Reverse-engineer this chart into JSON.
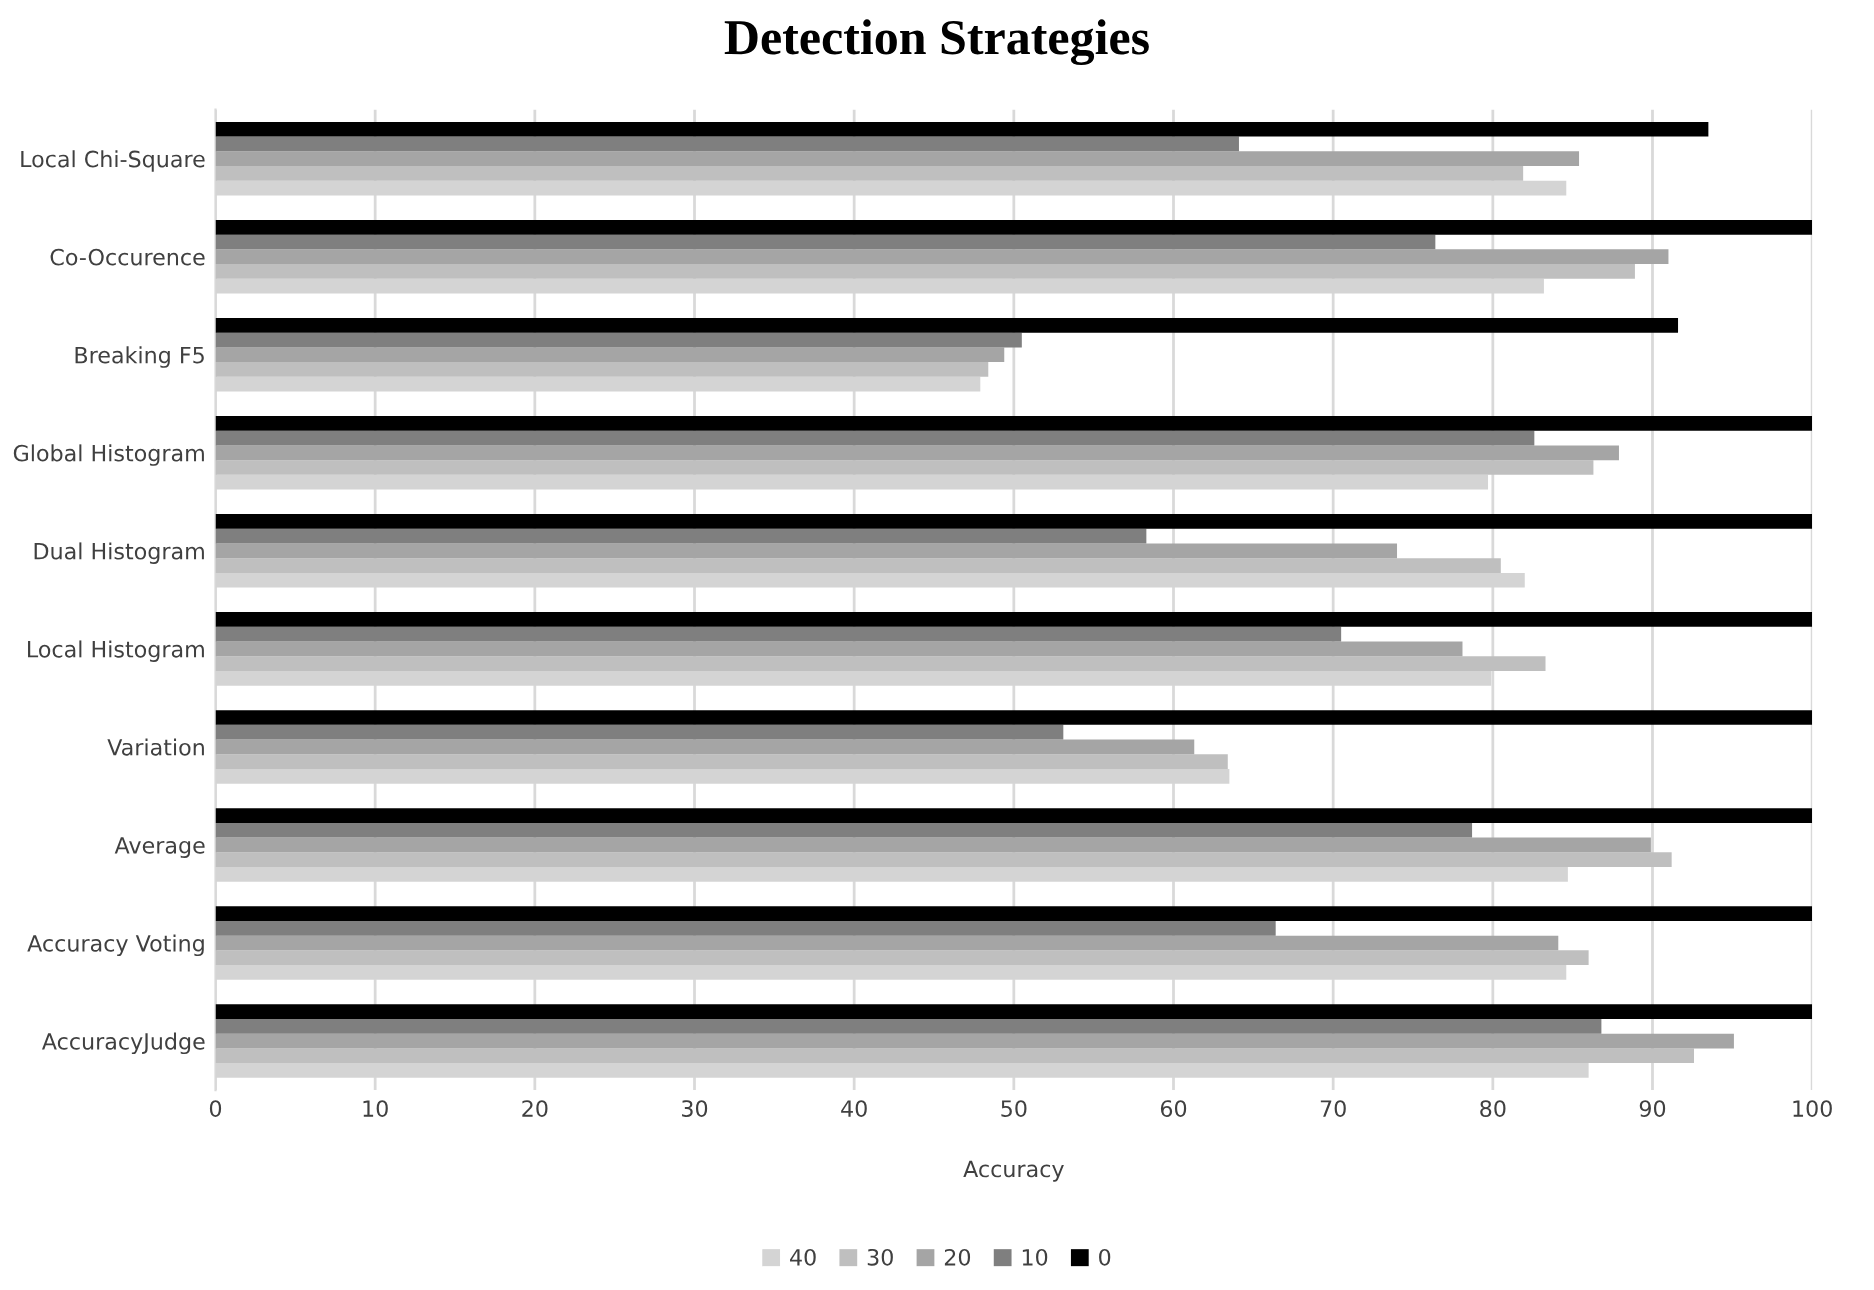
{
  "chart_data": {
    "type": "bar",
    "orientation": "horizontal",
    "title": "Detection Strategies",
    "xlabel": "Accuracy",
    "categories": [
      "Local Chi-Square",
      "Co-Occurence",
      "Breaking F5",
      "Global Histogram",
      "Dual Histogram",
      "Local Histogram",
      "Variation",
      "Average",
      "Accuracy Voting",
      "AccuracyJudge"
    ],
    "series": [
      {
        "name": "40",
        "color": "#d4d4d4",
        "values": [
          84.6,
          83.2,
          47.9,
          79.7,
          82.0,
          79.9,
          63.5,
          84.7,
          84.6,
          86.0
        ]
      },
      {
        "name": "30",
        "color": "#bfbfbf",
        "values": [
          81.9,
          88.9,
          48.4,
          86.3,
          80.5,
          83.3,
          63.4,
          91.2,
          86.0,
          92.6
        ]
      },
      {
        "name": "20",
        "color": "#a5a5a5",
        "values": [
          85.4,
          91.0,
          49.4,
          87.9,
          74.0,
          78.1,
          61.3,
          89.9,
          84.1,
          95.1
        ]
      },
      {
        "name": "10",
        "color": "#7f7f7f",
        "values": [
          64.1,
          76.4,
          50.5,
          82.6,
          58.3,
          70.5,
          53.1,
          78.7,
          66.4,
          86.8
        ]
      },
      {
        "name": "0",
        "color": "#000000",
        "values": [
          93.5,
          100,
          91.6,
          100,
          100,
          100,
          100,
          100,
          100,
          100
        ]
      }
    ],
    "xlim": [
      0,
      100
    ],
    "xticks": [
      0,
      10,
      20,
      30,
      40,
      50,
      60,
      70,
      80,
      90,
      100
    ],
    "grid": "x",
    "legend": "bottom"
  }
}
